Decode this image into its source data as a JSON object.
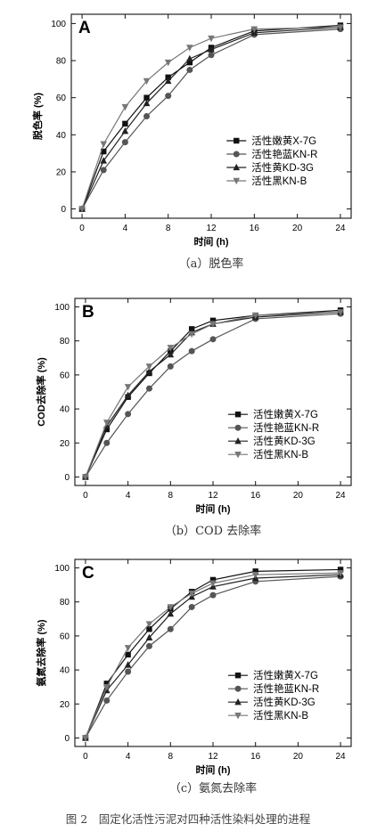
{
  "chart_data": [
    {
      "type": "line",
      "panel_letter": "A",
      "caption": "（a）脱色率",
      "xlabel": "时间 (h)",
      "ylabel": "脱色率 (%)",
      "xlim": [
        -1,
        25
      ],
      "ylim": [
        -5,
        105
      ],
      "xticks": [
        0,
        4,
        8,
        12,
        16,
        20,
        24
      ],
      "yticks": [
        0,
        20,
        40,
        60,
        80,
        100
      ],
      "grid": false,
      "legend_position": "right",
      "x": [
        0,
        2,
        4,
        6,
        8,
        10,
        12,
        16,
        24
      ],
      "series": [
        {
          "name": "活性嫩黄X-7G",
          "marker": "square",
          "values": [
            0,
            31,
            46,
            60,
            71,
            79,
            87,
            96,
            99
          ]
        },
        {
          "name": "活性艳蓝KN-R",
          "marker": "circle",
          "values": [
            0,
            21,
            36,
            50,
            61,
            75,
            83,
            94,
            97
          ]
        },
        {
          "name": "活性黄KD-3G",
          "marker": "triangle-up",
          "values": [
            0,
            26,
            42,
            57,
            69,
            81,
            86,
            95,
            98
          ]
        },
        {
          "name": "活性黑KN-B",
          "marker": "triangle-down",
          "values": [
            0,
            35,
            55,
            69,
            79,
            87,
            92,
            97,
            98
          ]
        }
      ]
    },
    {
      "type": "line",
      "panel_letter": "B",
      "caption": "（b）COD 去除率",
      "xlabel": "时间 (h)",
      "ylabel": "COD去除率 (%)",
      "xlim": [
        -1,
        25
      ],
      "ylim": [
        -5,
        105
      ],
      "xticks": [
        0,
        4,
        8,
        12,
        16,
        20,
        24
      ],
      "yticks": [
        0,
        20,
        40,
        60,
        80,
        100
      ],
      "grid": false,
      "legend_position": "right",
      "x": [
        0,
        2,
        4,
        6,
        8,
        10,
        12,
        16,
        24
      ],
      "series": [
        {
          "name": "活性嫩黄X-7G",
          "marker": "square",
          "values": [
            0,
            28,
            47,
            61,
            74,
            87,
            92,
            95,
            98
          ]
        },
        {
          "name": "活性艳蓝KN-R",
          "marker": "circle",
          "values": [
            0,
            20,
            37,
            52,
            65,
            74,
            81,
            93,
            96
          ]
        },
        {
          "name": "活性黄KD-3G",
          "marker": "triangle-up",
          "values": [
            0,
            30,
            48,
            62,
            72,
            85,
            90,
            94,
            97
          ]
        },
        {
          "name": "活性黑KN-B",
          "marker": "triangle-down",
          "values": [
            0,
            32,
            53,
            65,
            76,
            84,
            90,
            95,
            97
          ]
        }
      ]
    },
    {
      "type": "line",
      "panel_letter": "C",
      "caption": "（c）氨氮去除率",
      "xlabel": "时间 (h)",
      "ylabel": "氨氮去除率 (%)",
      "xlim": [
        -1,
        25
      ],
      "ylim": [
        -5,
        105
      ],
      "xticks": [
        0,
        4,
        8,
        12,
        16,
        20,
        24
      ],
      "yticks": [
        0,
        20,
        40,
        60,
        80,
        100
      ],
      "grid": false,
      "legend_position": "right",
      "x": [
        0,
        2,
        4,
        6,
        8,
        10,
        12,
        16,
        24
      ],
      "series": [
        {
          "name": "活性嫩黄X-7G",
          "marker": "square",
          "values": [
            0,
            32,
            49,
            64,
            76,
            86,
            93,
            98,
            99
          ]
        },
        {
          "name": "活性艳蓝KN-R",
          "marker": "circle",
          "values": [
            0,
            22,
            39,
            54,
            64,
            77,
            84,
            92,
            95
          ]
        },
        {
          "name": "活性黄KD-3G",
          "marker": "triangle-up",
          "values": [
            0,
            28,
            43,
            59,
            73,
            83,
            89,
            94,
            96
          ]
        },
        {
          "name": "活性黑KN-B",
          "marker": "triangle-down",
          "values": [
            0,
            30,
            53,
            67,
            77,
            85,
            91,
            96,
            97
          ]
        }
      ]
    }
  ],
  "figure_caption": "图 2　固定化活性污泥对四种活性染料处理的进程",
  "style": {
    "series_colors": [
      "#111111",
      "#555555",
      "#222222",
      "#777777"
    ],
    "axis_color": "#111111",
    "caption_color": "#333333"
  }
}
